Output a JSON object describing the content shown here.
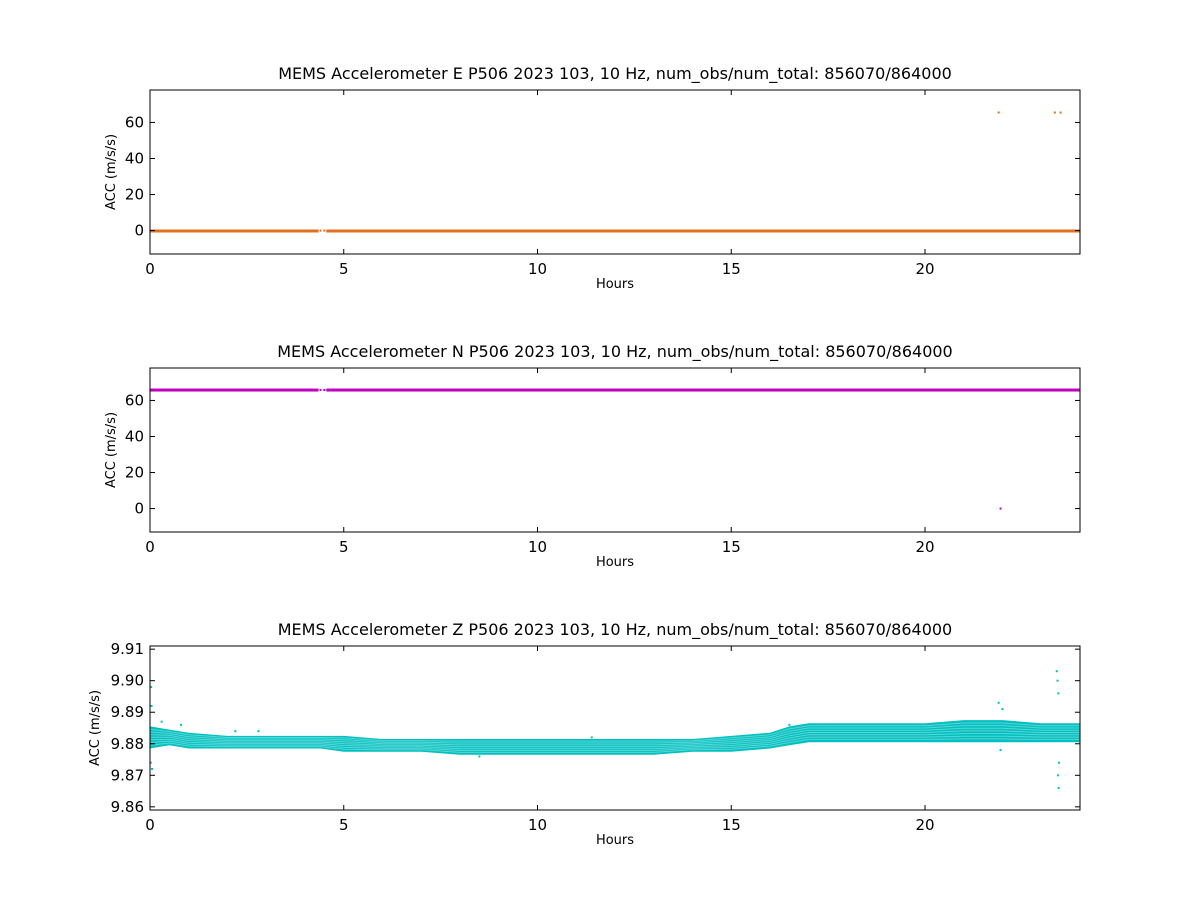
{
  "chart_data": [
    {
      "type": "scatter",
      "title": "MEMS Accelerometer E P506 2023 103, 10 Hz, num_obs/num_total: 856070/864000",
      "xlabel": "Hours",
      "ylabel": "ACC (m/s/s)",
      "xlim": [
        0,
        24
      ],
      "ylim": [
        -13,
        78
      ],
      "xticks": [
        "0",
        "5",
        "10",
        "15",
        "20"
      ],
      "yticks": [
        "0",
        "20",
        "40",
        "60"
      ],
      "grid": false,
      "series": [
        {
          "color": "#e07020",
          "band": {
            "y": 0,
            "half_height": 0.6,
            "x_segments": [
              [
                0,
                4.35
              ],
              [
                4.55,
                24
              ]
            ]
          },
          "points": [
            [
              4.4,
              0
            ],
            [
              4.5,
              0
            ],
            [
              21.9,
              65.5
            ],
            [
              23.35,
              65.5
            ],
            [
              23.5,
              65.5
            ]
          ]
        }
      ]
    },
    {
      "type": "scatter",
      "title": "MEMS Accelerometer N P506 2023 103, 10 Hz, num_obs/num_total: 856070/864000",
      "xlabel": "Hours",
      "ylabel": "ACC (m/s/s)",
      "xlim": [
        0,
        24
      ],
      "ylim": [
        -13,
        78
      ],
      "xticks": [
        "0",
        "5",
        "10",
        "15",
        "20"
      ],
      "yticks": [
        "0",
        "20",
        "40",
        "60"
      ],
      "grid": false,
      "series": [
        {
          "color": "#c000c0",
          "band": {
            "y": 65.8,
            "half_height": 0.8,
            "x_segments": [
              [
                0,
                4.35
              ],
              [
                4.55,
                24
              ]
            ]
          },
          "points": [
            [
              4.4,
              65.8
            ],
            [
              4.5,
              65.8
            ],
            [
              21.95,
              0
            ]
          ]
        }
      ]
    },
    {
      "type": "scatter",
      "title": "MEMS Accelerometer Z P506 2023 103, 10 Hz, num_obs/num_total: 856070/864000",
      "xlabel": "Hours",
      "ylabel": "ACC (m/s/s)",
      "xlim": [
        0,
        24
      ],
      "ylim": [
        9.859,
        9.911
      ],
      "xticks": [
        "0",
        "5",
        "10",
        "15",
        "20"
      ],
      "yticks": [
        "9.86",
        "9.87",
        "9.88",
        "9.89",
        "9.90",
        "9.91"
      ],
      "grid": false,
      "series": [
        {
          "color": "#00c0c0",
          "band_profile": [
            [
              0.0,
              9.8785,
              9.8855
            ],
            [
              0.5,
              9.8795,
              9.8845
            ],
            [
              1.0,
              9.8785,
              9.8835
            ],
            [
              2.0,
              9.8785,
              9.8825
            ],
            [
              3.0,
              9.8785,
              9.8825
            ],
            [
              4.4,
              9.8785,
              9.8825
            ],
            [
              5.0,
              9.8775,
              9.8825
            ],
            [
              6.0,
              9.8775,
              9.8815
            ],
            [
              7.0,
              9.8775,
              9.8815
            ],
            [
              8.0,
              9.8765,
              9.8815
            ],
            [
              9.0,
              9.8765,
              9.8815
            ],
            [
              10.0,
              9.8765,
              9.8815
            ],
            [
              11.0,
              9.8765,
              9.8815
            ],
            [
              12.0,
              9.8765,
              9.8815
            ],
            [
              13.0,
              9.8765,
              9.8815
            ],
            [
              14.0,
              9.8775,
              9.8815
            ],
            [
              15.0,
              9.8775,
              9.8825
            ],
            [
              16.0,
              9.8785,
              9.8835
            ],
            [
              16.5,
              9.8795,
              9.8855
            ],
            [
              17.0,
              9.8805,
              9.8865
            ],
            [
              18.0,
              9.8805,
              9.8865
            ],
            [
              19.0,
              9.8805,
              9.8865
            ],
            [
              20.0,
              9.8805,
              9.8865
            ],
            [
              21.0,
              9.8805,
              9.8875
            ],
            [
              22.0,
              9.8805,
              9.8875
            ],
            [
              23.0,
              9.8805,
              9.8865
            ],
            [
              24.0,
              9.8805,
              9.8865
            ]
          ],
          "points": [
            [
              0.02,
              9.874
            ],
            [
              0.03,
              9.898
            ],
            [
              0.05,
              9.872
            ],
            [
              0.04,
              9.892
            ],
            [
              0.3,
              9.887
            ],
            [
              0.8,
              9.886
            ],
            [
              2.2,
              9.884
            ],
            [
              2.8,
              9.884
            ],
            [
              8.5,
              9.876
            ],
            [
              11.4,
              9.882
            ],
            [
              16.5,
              9.886
            ],
            [
              21.9,
              9.893
            ],
            [
              21.95,
              9.878
            ],
            [
              22.0,
              9.891
            ],
            [
              23.4,
              9.903
            ],
            [
              23.42,
              9.9
            ],
            [
              23.45,
              9.866
            ],
            [
              23.43,
              9.87
            ],
            [
              23.44,
              9.896
            ],
            [
              23.46,
              9.874
            ]
          ]
        }
      ]
    }
  ]
}
